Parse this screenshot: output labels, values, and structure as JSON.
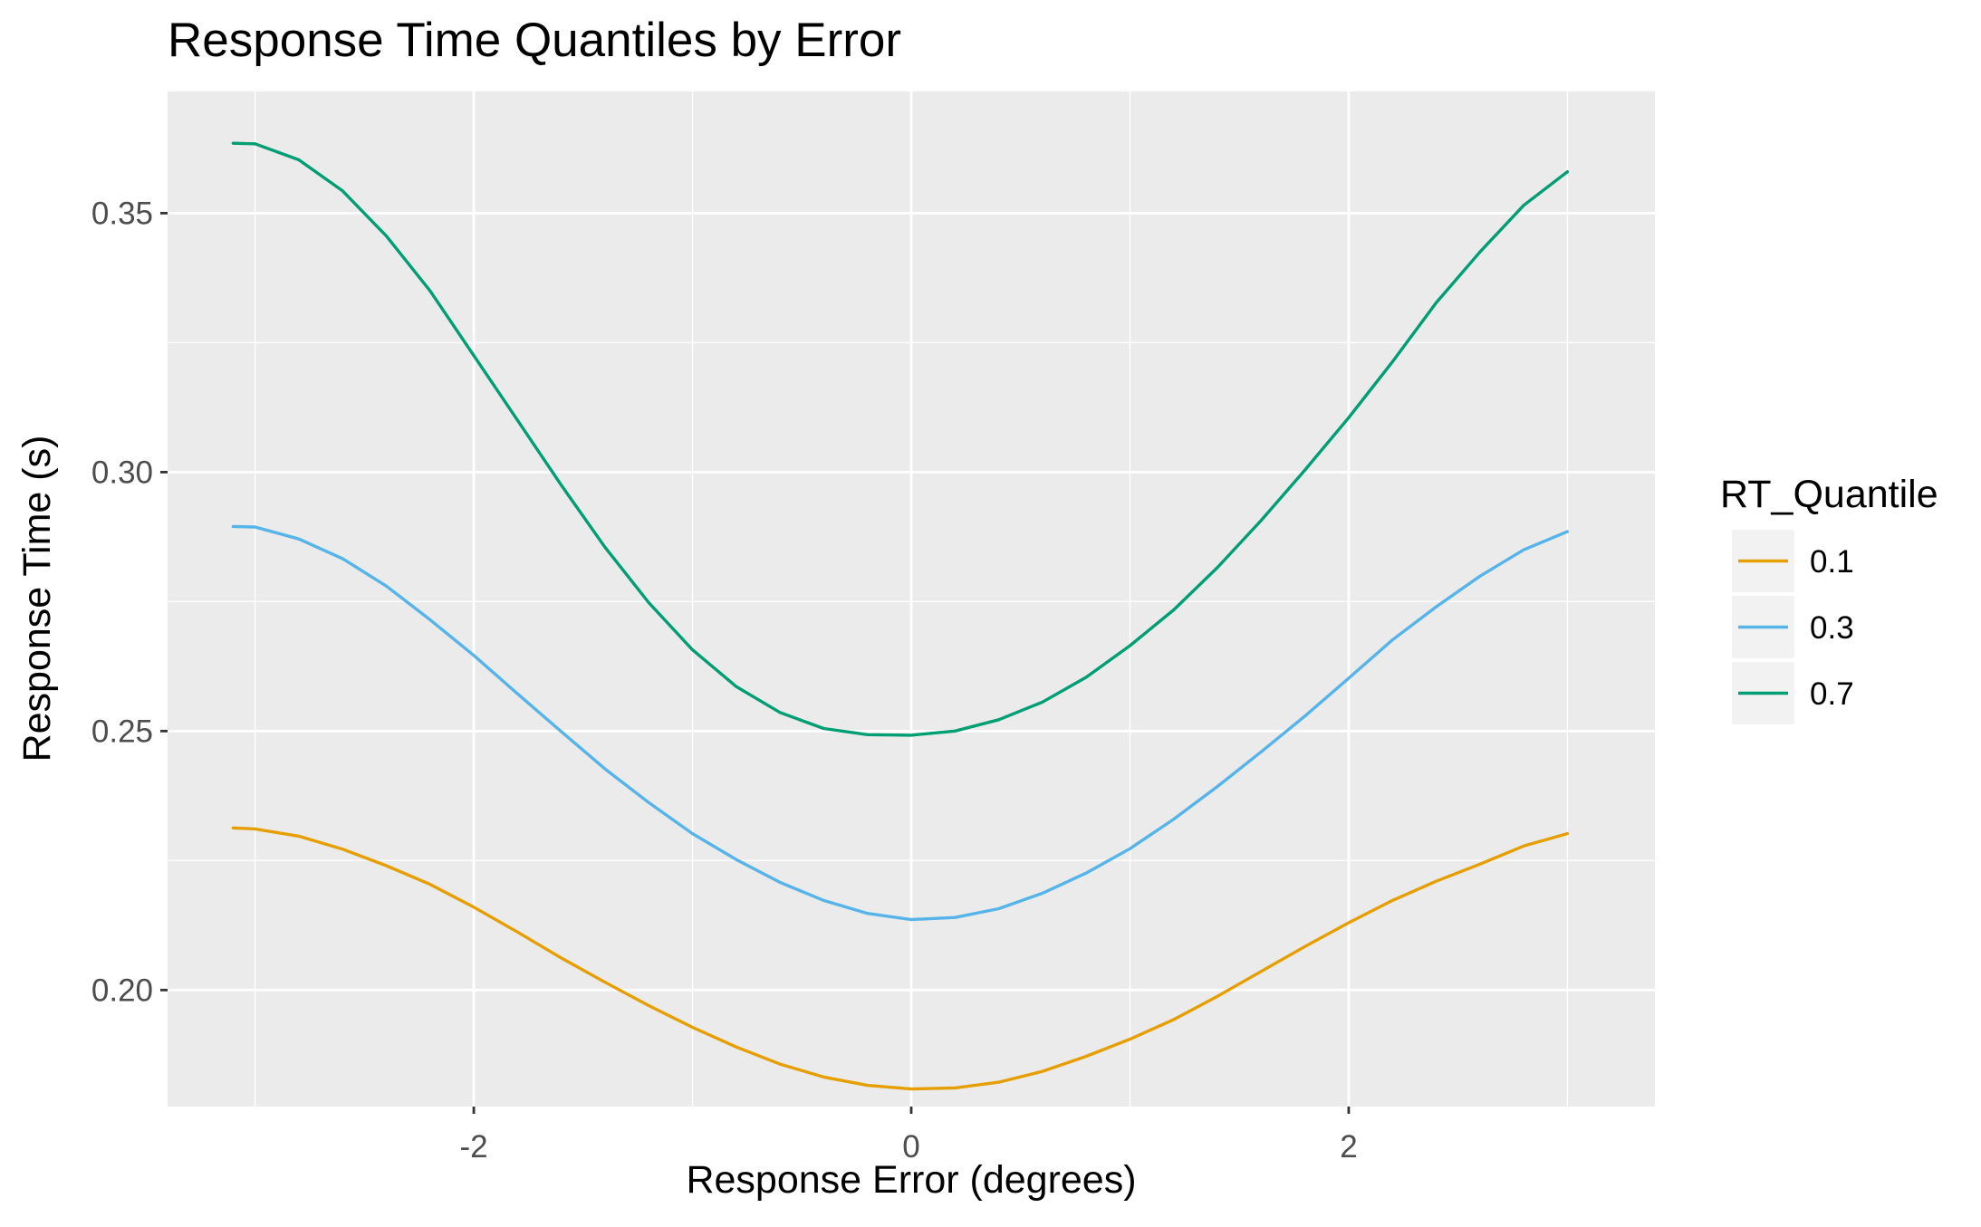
{
  "chart_data": {
    "type": "line",
    "title": "Response Time Quantiles by Error",
    "xlabel": "Response Error (degrees)",
    "ylabel": "Response Time (s)",
    "xlim": [
      -3.4,
      3.4
    ],
    "ylim": [
      0.1775,
      0.3735
    ],
    "x_ticks": [
      -2,
      0,
      2
    ],
    "x_tick_labels": [
      "-2",
      "0",
      "2"
    ],
    "x_minor_ticks": [
      -3,
      -1,
      1,
      3
    ],
    "y_ticks": [
      0.2,
      0.25,
      0.3,
      0.35
    ],
    "y_tick_labels": [
      "0.20",
      "0.25",
      "0.30",
      "0.35"
    ],
    "y_minor_ticks": [
      0.175,
      0.225,
      0.275,
      0.325
    ],
    "grid": true,
    "background": "#ebebeb",
    "grid_color": "#ffffff",
    "legend_title": "RT_Quantile",
    "legend_position": "right",
    "x": [
      -3.1,
      -3.0,
      -2.8,
      -2.6,
      -2.4,
      -2.2,
      -2.0,
      -1.8,
      -1.6,
      -1.4,
      -1.2,
      -1.0,
      -0.8,
      -0.6,
      -0.4,
      -0.2,
      0.0,
      0.2,
      0.4,
      0.6,
      0.8,
      1.0,
      1.2,
      1.4,
      1.6,
      1.8,
      2.0,
      2.2,
      2.4,
      2.6,
      2.8,
      3.0
    ],
    "series": [
      {
        "name": "0.1",
        "color": "#E69F00",
        "values": [
          0.2313,
          0.2311,
          0.2297,
          0.2272,
          0.224,
          0.2204,
          0.216,
          0.2112,
          0.2062,
          0.2015,
          0.197,
          0.1928,
          0.189,
          0.1857,
          0.1832,
          0.1816,
          0.1809,
          0.1811,
          0.1822,
          0.1843,
          0.1872,
          0.1905,
          0.1943,
          0.1988,
          0.2036,
          0.2084,
          0.213,
          0.2173,
          0.221,
          0.2243,
          0.2278,
          0.2302
        ]
      },
      {
        "name": "0.3",
        "color": "#56B4E9",
        "values": [
          0.2895,
          0.2894,
          0.2871,
          0.2833,
          0.278,
          0.2715,
          0.2646,
          0.2572,
          0.2499,
          0.2427,
          0.2362,
          0.2302,
          0.2252,
          0.2208,
          0.2173,
          0.2148,
          0.2136,
          0.214,
          0.2157,
          0.2187,
          0.2226,
          0.2273,
          0.233,
          0.2393,
          0.246,
          0.2529,
          0.2602,
          0.2676,
          0.274,
          0.2799,
          0.285,
          0.2885
        ]
      },
      {
        "name": "0.7",
        "color": "#009E73",
        "values": [
          0.3635,
          0.3634,
          0.3603,
          0.3543,
          0.3456,
          0.335,
          0.3225,
          0.31,
          0.2975,
          0.2855,
          0.2748,
          0.2657,
          0.2586,
          0.2536,
          0.2505,
          0.2493,
          0.2492,
          0.25,
          0.2522,
          0.2556,
          0.2604,
          0.2665,
          0.2734,
          0.2816,
          0.2907,
          0.3004,
          0.3105,
          0.3213,
          0.3327,
          0.3425,
          0.3515,
          0.358
        ]
      }
    ]
  }
}
